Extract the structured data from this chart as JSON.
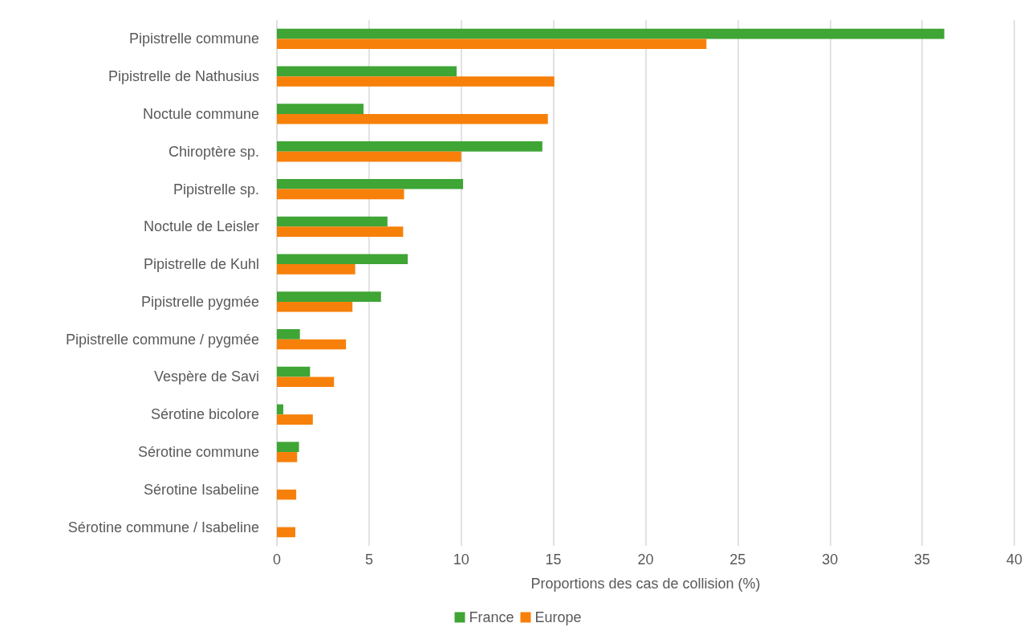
{
  "chart_data": {
    "type": "bar",
    "orientation": "horizontal",
    "xlabel": "Proportions des cas de collision (%)",
    "categories": [
      "Pipistrelle commune",
      "Pipistrelle de Nathusius",
      "Noctule commune",
      "Chiroptère sp.",
      "Pipistrelle sp.",
      "Noctule de Leisler",
      "Pipistrelle de Kuhl",
      "Pipistrelle pygmée",
      "Pipistrelle commune / pygmée",
      "Vespère de Savi",
      "Sérotine bicolore",
      "Sérotine commune",
      "Sérotine Isabeline",
      "Sérotine commune / Isabeline"
    ],
    "series": [
      {
        "name": "France",
        "color": "#3fa535",
        "values": [
          36.2,
          9.75,
          4.7,
          14.4,
          10.1,
          6.0,
          7.1,
          5.65,
          1.25,
          1.8,
          0.35,
          1.2,
          null,
          null
        ]
      },
      {
        "name": "Europe",
        "color": "#f7800a",
        "values": [
          23.3,
          15.05,
          14.7,
          10.0,
          6.9,
          6.85,
          4.25,
          4.1,
          3.75,
          3.1,
          1.95,
          1.1,
          1.05,
          1.0
        ]
      }
    ],
    "xlim": [
      0,
      40
    ],
    "xticks": [
      0,
      5,
      10,
      15,
      20,
      25,
      30,
      35,
      40
    ],
    "grid": "x",
    "legend": "bottom"
  }
}
